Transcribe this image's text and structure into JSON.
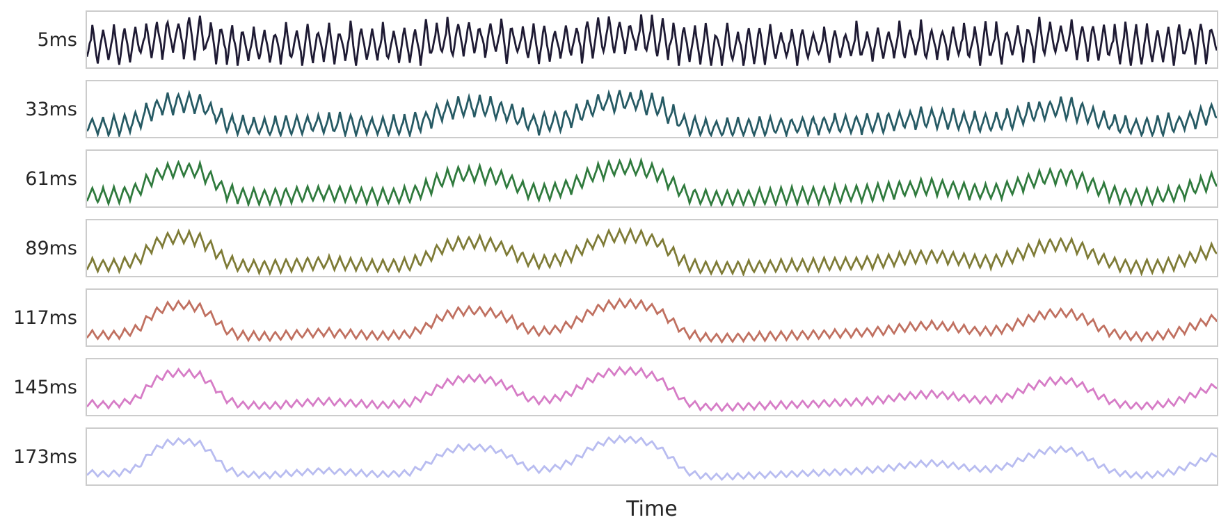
{
  "chart_data": {
    "type": "line",
    "title": "",
    "xlabel": "Time",
    "ylabel": "",
    "x_ticks": [],
    "y_ticks": [],
    "grid": false,
    "legend": "none",
    "layout": "7 stacked horizontal panels (ridgeline), shared unlabeled time axis, row labels on left",
    "panel_border_color": "#cccccc",
    "text_color": "#262626",
    "background_color": "#ffffff",
    "ripple_cycles": 105,
    "samples_per_cycle": 8,
    "series": [
      {
        "label": "5ms",
        "color": "#1e1a33",
        "base": 0.38,
        "env_weight": 0.18,
        "ripple_amp": 0.3,
        "noise": 0.42
      },
      {
        "label": "33ms",
        "color": "#265a64",
        "base": 0.13,
        "env_weight": 0.52,
        "ripple_amp": 0.165,
        "noise": 0.3
      },
      {
        "label": "61ms",
        "color": "#2f7a3d",
        "base": 0.12,
        "env_weight": 0.58,
        "ripple_amp": 0.135,
        "noise": 0.16
      },
      {
        "label": "89ms",
        "color": "#7e7b36",
        "base": 0.11,
        "env_weight": 0.62,
        "ripple_amp": 0.11,
        "noise": 0.12
      },
      {
        "label": "117ms",
        "color": "#c07060",
        "base": 0.1,
        "env_weight": 0.66,
        "ripple_amp": 0.075,
        "noise": 0.09
      },
      {
        "label": "145ms",
        "color": "#d67cc6",
        "base": 0.1,
        "env_weight": 0.7,
        "ripple_amp": 0.062,
        "noise": 0.07
      },
      {
        "label": "173ms",
        "color": "#b8bcf0",
        "base": 0.1,
        "env_weight": 0.72,
        "ripple_amp": 0.052,
        "noise": 0.05
      }
    ],
    "envelope": [
      [
        0.0,
        0.16
      ],
      [
        0.015,
        0.12
      ],
      [
        0.03,
        0.15
      ],
      [
        0.045,
        0.3
      ],
      [
        0.058,
        0.7
      ],
      [
        0.07,
        0.9
      ],
      [
        0.085,
        0.95
      ],
      [
        0.1,
        0.88
      ],
      [
        0.112,
        0.6
      ],
      [
        0.122,
        0.28
      ],
      [
        0.135,
        0.12
      ],
      [
        0.16,
        0.09
      ],
      [
        0.185,
        0.15
      ],
      [
        0.21,
        0.21
      ],
      [
        0.235,
        0.16
      ],
      [
        0.26,
        0.11
      ],
      [
        0.285,
        0.15
      ],
      [
        0.3,
        0.35
      ],
      [
        0.315,
        0.65
      ],
      [
        0.33,
        0.78
      ],
      [
        0.345,
        0.8
      ],
      [
        0.36,
        0.74
      ],
      [
        0.375,
        0.55
      ],
      [
        0.388,
        0.3
      ],
      [
        0.4,
        0.22
      ],
      [
        0.415,
        0.28
      ],
      [
        0.43,
        0.45
      ],
      [
        0.445,
        0.75
      ],
      [
        0.46,
        0.95
      ],
      [
        0.475,
        1.0
      ],
      [
        0.49,
        0.96
      ],
      [
        0.505,
        0.82
      ],
      [
        0.518,
        0.5
      ],
      [
        0.53,
        0.18
      ],
      [
        0.545,
        0.07
      ],
      [
        0.565,
        0.05
      ],
      [
        0.59,
        0.09
      ],
      [
        0.62,
        0.12
      ],
      [
        0.65,
        0.15
      ],
      [
        0.68,
        0.19
      ],
      [
        0.705,
        0.25
      ],
      [
        0.73,
        0.36
      ],
      [
        0.75,
        0.4
      ],
      [
        0.768,
        0.33
      ],
      [
        0.785,
        0.25
      ],
      [
        0.8,
        0.24
      ],
      [
        0.815,
        0.33
      ],
      [
        0.832,
        0.55
      ],
      [
        0.85,
        0.72
      ],
      [
        0.868,
        0.74
      ],
      [
        0.882,
        0.6
      ],
      [
        0.895,
        0.35
      ],
      [
        0.91,
        0.16
      ],
      [
        0.928,
        0.09
      ],
      [
        0.945,
        0.1
      ],
      [
        0.962,
        0.18
      ],
      [
        0.98,
        0.38
      ],
      [
        1.0,
        0.62
      ]
    ]
  }
}
